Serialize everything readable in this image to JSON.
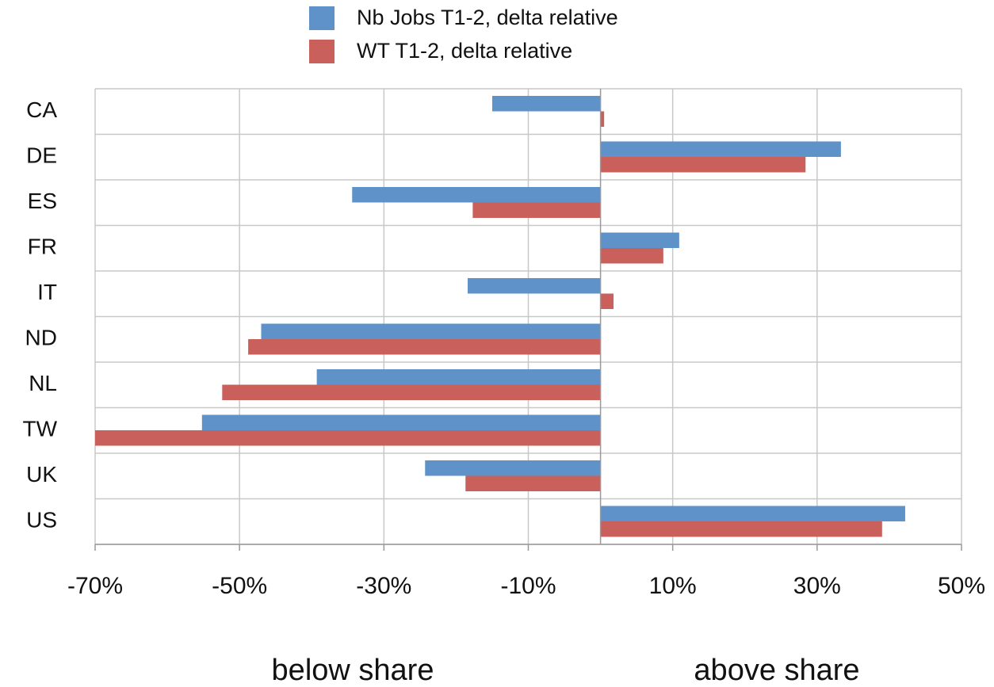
{
  "chart_data": {
    "type": "hbar",
    "categories": [
      "CA",
      "DE",
      "ES",
      "FR",
      "IT",
      "ND",
      "NL",
      "TW",
      "UK",
      "US"
    ],
    "series": [
      {
        "name": "Nb Jobs T1-2, delta relative",
        "color": "#5f92c9",
        "values": [
          -15,
          33.3,
          -34.4,
          10.9,
          -18.4,
          -47,
          -39.3,
          -55.2,
          -24.3,
          42.2
        ]
      },
      {
        "name": "WT T1-2, delta relative",
        "color": "#c9605c",
        "values": [
          0.5,
          28.4,
          -17.7,
          8.7,
          1.8,
          -48.8,
          -52.4,
          -70,
          -18.7,
          39
        ]
      }
    ],
    "xlim": [
      -70,
      50
    ],
    "xticks": [
      {
        "value": -70,
        "label": "-70%"
      },
      {
        "value": -50,
        "label": "-50%"
      },
      {
        "value": -30,
        "label": "-30%"
      },
      {
        "value": -10,
        "label": "-10%"
      },
      {
        "value": 10,
        "label": "10%"
      },
      {
        "value": 30,
        "label": "30%"
      },
      {
        "value": 50,
        "label": "50%"
      }
    ],
    "grid": true,
    "legend": "top",
    "annotations": [
      "below share",
      "above share"
    ]
  }
}
